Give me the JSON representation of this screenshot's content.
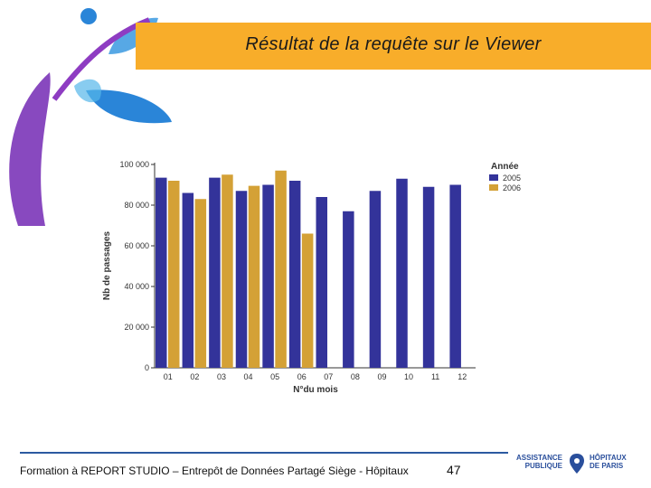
{
  "slide": {
    "title": "Résultat de la requête sur le Viewer",
    "footer_text": "Formation à REPORT STUDIO – Entrepôt de Données Partagé Siège - Hôpitaux",
    "page_number": "47",
    "logo_left_line1": "ASSISTANCE",
    "logo_left_line2": "PUBLIQUE",
    "logo_right_line1": "HÔPITAUX",
    "logo_right_line2": "DE PARIS"
  },
  "colors": {
    "header": "#f8ad2a",
    "series_2005": "#33339a",
    "series_2006": "#d4a136"
  },
  "chart_data": {
    "type": "bar",
    "title": "",
    "xlabel": "N°du mois",
    "ylabel": "Nb de passages",
    "ylim": [
      0,
      100000
    ],
    "yticks": [
      0,
      20000,
      40000,
      60000,
      80000,
      100000
    ],
    "ytick_labels": [
      "0",
      "20 000",
      "40 000",
      "60 000",
      "80 000",
      "100 000"
    ],
    "categories": [
      "01",
      "02",
      "03",
      "04",
      "05",
      "06",
      "07",
      "08",
      "09",
      "10",
      "11",
      "12"
    ],
    "legend_title": "Année",
    "legend_position": "top-right",
    "series": [
      {
        "name": "2005",
        "color": "#33339a",
        "values": [
          93500,
          86000,
          93500,
          87000,
          90000,
          92000,
          84000,
          77000,
          87000,
          93000,
          89000,
          90000
        ]
      },
      {
        "name": "2006",
        "color": "#d4a136",
        "values": [
          92000,
          83000,
          95000,
          89500,
          97000,
          66000,
          null,
          null,
          null,
          null,
          null,
          null
        ]
      }
    ]
  }
}
